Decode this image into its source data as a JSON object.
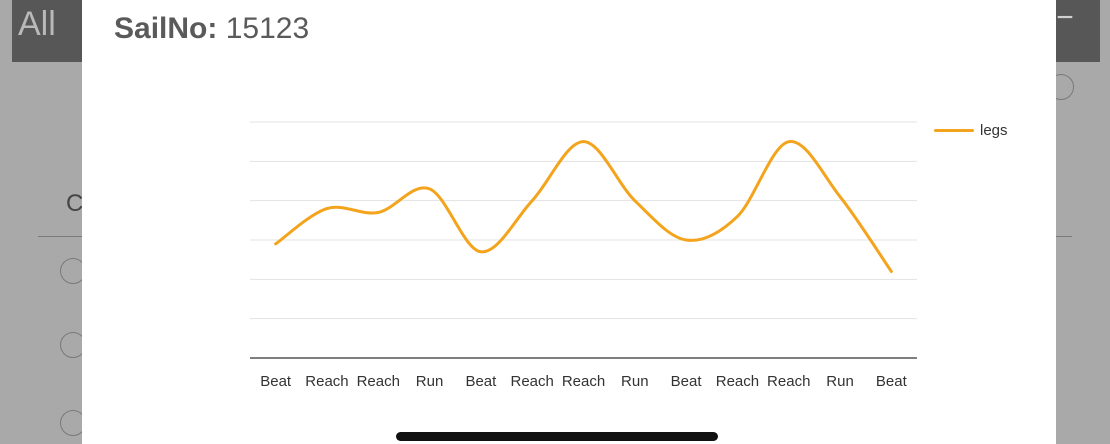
{
  "background": {
    "header_title": "All",
    "header_button": "−",
    "list_column_fragment": "C"
  },
  "modal": {
    "title_label": "SailNo:",
    "title_value": "15123"
  },
  "chart_data": {
    "type": "line",
    "title": "",
    "xlabel": "",
    "ylabel": "",
    "grid": true,
    "legend_placement": "top-right",
    "color": "#f4a41c",
    "categories": [
      "Beat",
      "Reach",
      "Reach",
      "Run",
      "Beat",
      "Reach",
      "Reach",
      "Run",
      "Beat",
      "Reach",
      "Reach",
      "Run",
      "Beat"
    ],
    "series": [
      {
        "name": "legs",
        "values": [
          2.9,
          3.8,
          3.7,
          4.3,
          2.7,
          4.0,
          5.5,
          4.0,
          3.0,
          3.6,
          5.5,
          4.1,
          2.2
        ]
      }
    ],
    "ylim": [
      0,
      6
    ]
  }
}
